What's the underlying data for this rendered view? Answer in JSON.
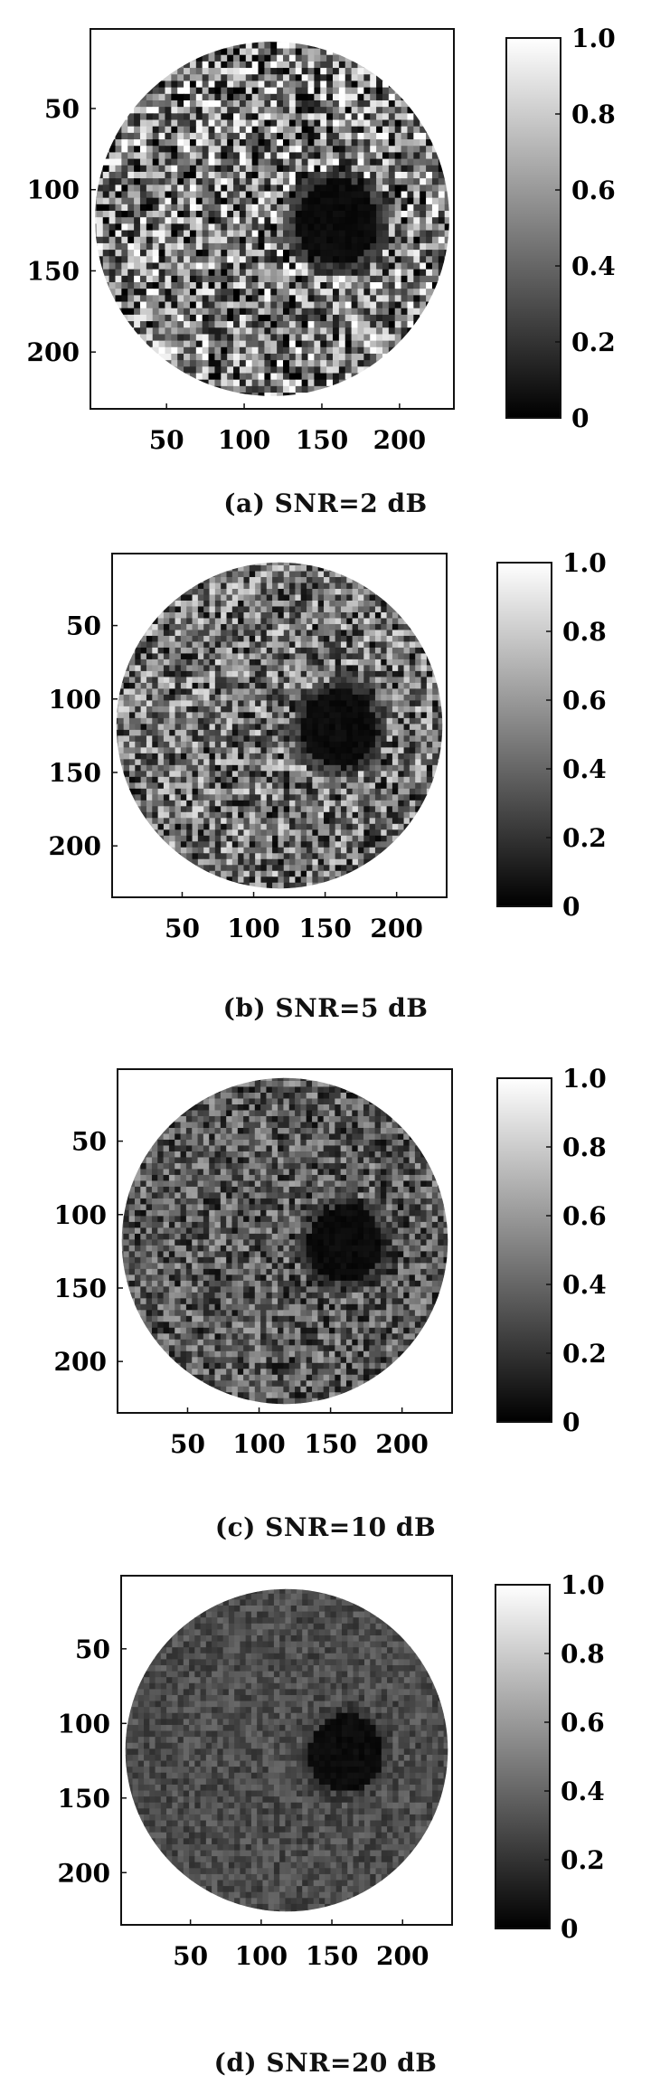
{
  "chart_data": [
    {
      "type": "heatmap",
      "caption": "(a) SNR=2 dB",
      "xticks": [
        50,
        100,
        150,
        200
      ],
      "yticks": [
        50,
        100,
        150,
        200
      ],
      "xlim": [
        1,
        235
      ],
      "ylim": [
        1,
        235
      ],
      "colorbar_ticks": [
        "1.0",
        "0.8",
        "0.6",
        "0.4",
        "0.2",
        "0"
      ],
      "colorbar_range": [
        0,
        1
      ],
      "colormap": "gray",
      "snr_db": 2
    },
    {
      "type": "heatmap",
      "caption": "(b) SNR=5 dB",
      "xticks": [
        50,
        100,
        150,
        200
      ],
      "yticks": [
        50,
        100,
        150,
        200
      ],
      "xlim": [
        1,
        235
      ],
      "ylim": [
        1,
        235
      ],
      "colorbar_ticks": [
        "1.0",
        "0.8",
        "0.6",
        "0.4",
        "0.2",
        "0"
      ],
      "colorbar_range": [
        0,
        1
      ],
      "colormap": "gray",
      "snr_db": 5
    },
    {
      "type": "heatmap",
      "caption": "(c) SNR=10 dB",
      "xticks": [
        50,
        100,
        150,
        200
      ],
      "yticks": [
        50,
        100,
        150,
        200
      ],
      "xlim": [
        1,
        235
      ],
      "ylim": [
        1,
        235
      ],
      "colorbar_ticks": [
        "1.0",
        "0.8",
        "0.6",
        "0.4",
        "0.2",
        "0"
      ],
      "colorbar_range": [
        0,
        1
      ],
      "colormap": "gray",
      "snr_db": 10
    },
    {
      "type": "heatmap",
      "caption": "(d) SNR=20 dB",
      "xticks": [
        50,
        100,
        150,
        200
      ],
      "yticks": [
        50,
        100,
        150,
        200
      ],
      "xlim": [
        1,
        235
      ],
      "ylim": [
        1,
        235
      ],
      "colorbar_ticks": [
        "1.0",
        "0.8",
        "0.6",
        "0.4",
        "0.2",
        "0"
      ],
      "colorbar_range": [
        0,
        1
      ],
      "colormap": "gray",
      "snr_db": 20
    }
  ]
}
